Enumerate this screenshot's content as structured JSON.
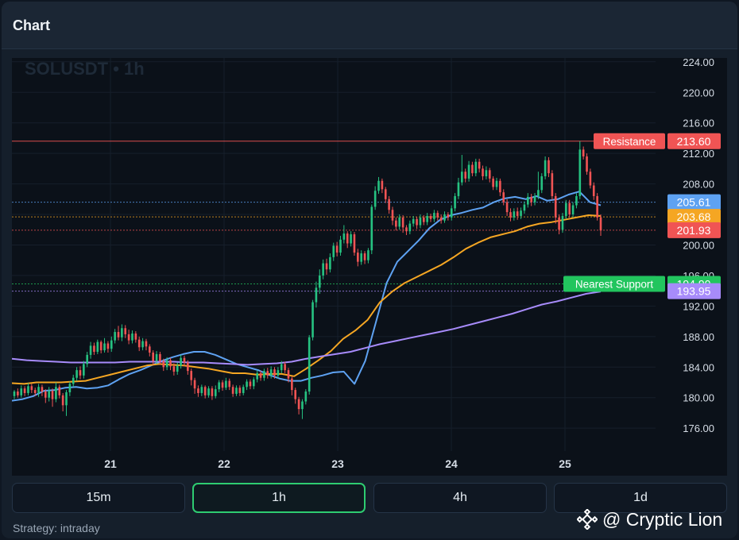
{
  "panel": {
    "title": "Chart"
  },
  "chart": {
    "symbol_label": "SOLUSDT • 1h",
    "y_ticks": [
      "224.00",
      "220.00",
      "216.00",
      "212.00",
      "208.00",
      "204.00",
      "200.00",
      "196.00",
      "192.00",
      "188.00",
      "184.00",
      "180.00",
      "176.00"
    ],
    "x_ticks": [
      "21",
      "22",
      "23",
      "24",
      "25"
    ]
  },
  "chart_data": {
    "type": "line",
    "symbol": "SOLUSDT",
    "interval": "1h",
    "ylim": [
      173,
      224.5
    ],
    "x_ticks": [
      "21",
      "22",
      "23",
      "24",
      "25"
    ],
    "series": [
      {
        "values": [
          179.6,
          179.8,
          180.2,
          180.9,
          181.0,
          181.3,
          181.4,
          181.2,
          181.3,
          181.6,
          182.4,
          183.1,
          183.6,
          184.2,
          184.8,
          185.3,
          185.7,
          186.0,
          186.0,
          185.6,
          185.0,
          184.4,
          184.0,
          183.6,
          183.0,
          182.5,
          182.2,
          182.2,
          182.6,
          182.9,
          183.3,
          183.4,
          181.8,
          184.8,
          189.9,
          195.0,
          197.8,
          199.2,
          200.6,
          202.2,
          203.3,
          203.9,
          204.2,
          204.6,
          204.9,
          205.6,
          206.1,
          206.3,
          206.0,
          206.4,
          205.8,
          206.0,
          206.6,
          207.0,
          205.6,
          205.2
        ],
        "color": "#5ea2f2"
      },
      {
        "values": [
          181.9,
          181.8,
          182.0,
          182.0,
          182.0,
          182.1,
          182.2,
          182.6,
          183.0,
          183.4,
          183.8,
          184.2,
          184.4,
          184.3,
          184.2,
          184.0,
          183.8,
          183.5,
          183.2,
          183.2,
          183.0,
          183.1,
          183.1,
          182.8,
          183.8,
          184.9,
          186.1,
          187.7,
          188.8,
          190.2,
          192.5,
          193.9,
          195.0,
          195.8,
          196.6,
          197.4,
          198.4,
          199.5,
          200.3,
          201.0,
          201.4,
          201.8,
          202.4,
          202.8,
          203.0,
          203.3,
          203.6,
          203.9,
          203.8
        ],
        "color": "#f5a623"
      },
      {
        "values": [
          185.1,
          184.9,
          184.8,
          184.7,
          184.6,
          184.6,
          184.6,
          184.6,
          184.7,
          184.7,
          184.7,
          184.7,
          184.6,
          184.6,
          184.5,
          184.4,
          184.3,
          184.4,
          184.5,
          184.7,
          185.1,
          185.4,
          185.7,
          186.0,
          186.5,
          187.0,
          187.4,
          187.8,
          188.2,
          188.6,
          189.0,
          189.5,
          190.0,
          190.5,
          191.0,
          191.6,
          192.2,
          192.6,
          193.1,
          193.6,
          193.9
        ],
        "color": "#a78bfa"
      }
    ],
    "levels": [
      {
        "label": "Resistance",
        "value": "213.60",
        "color": "#f05454"
      },
      {
        "label": "",
        "value": "205.61",
        "color": "#5ea2f2"
      },
      {
        "label": "",
        "value": "203.68",
        "color": "#f5a623"
      },
      {
        "label": "",
        "value": "201.93",
        "color": "#f05454"
      },
      {
        "label": "Nearest Support",
        "value": "194.90",
        "color": "#22c55e"
      },
      {
        "label": "",
        "value": "193.95",
        "color": "#a78bfa"
      }
    ],
    "candles": [
      [
        180.2,
        180.8,
        179.8,
        181.0
      ],
      [
        180.8,
        180.3,
        180.0,
        181.2
      ],
      [
        180.3,
        181.2,
        180.0,
        181.6
      ],
      [
        181.2,
        180.6,
        180.2,
        181.5
      ],
      [
        180.6,
        181.5,
        180.3,
        181.9
      ],
      [
        181.5,
        181.0,
        180.6,
        181.8
      ],
      [
        181.0,
        180.6,
        180.2,
        181.3
      ],
      [
        180.6,
        181.4,
        180.1,
        181.8
      ],
      [
        181.4,
        180.8,
        180.2,
        181.7
      ],
      [
        180.8,
        180.0,
        179.3,
        181.1
      ],
      [
        180.0,
        180.9,
        179.5,
        181.4
      ],
      [
        180.9,
        179.8,
        178.8,
        181.2
      ],
      [
        179.8,
        181.4,
        179.4,
        182.0
      ],
      [
        181.4,
        180.3,
        179.9,
        181.7
      ],
      [
        180.3,
        179.0,
        178.2,
        180.6
      ],
      [
        179.0,
        180.7,
        177.6,
        181.0
      ],
      [
        180.7,
        181.8,
        180.2,
        182.1
      ],
      [
        181.8,
        182.6,
        181.4,
        183.0
      ],
      [
        182.6,
        183.6,
        182.2,
        184.0
      ],
      [
        183.6,
        182.9,
        182.4,
        184.1
      ],
      [
        182.9,
        184.4,
        182.5,
        184.8
      ],
      [
        184.4,
        185.6,
        184.0,
        186.0
      ],
      [
        185.6,
        186.8,
        185.1,
        187.3
      ],
      [
        186.8,
        186.0,
        185.6,
        187.2
      ],
      [
        186.0,
        187.3,
        185.7,
        187.6
      ],
      [
        187.3,
        186.2,
        185.8,
        187.5
      ],
      [
        186.2,
        187.1,
        185.9,
        187.8
      ],
      [
        187.1,
        186.4,
        185.9,
        187.4
      ],
      [
        186.4,
        187.5,
        186.0,
        188.0
      ],
      [
        187.5,
        188.6,
        187.1,
        189.0
      ],
      [
        188.6,
        187.9,
        187.5,
        189.4
      ],
      [
        187.9,
        189.1,
        187.4,
        189.6
      ],
      [
        189.1,
        188.3,
        187.8,
        189.5
      ],
      [
        188.3,
        187.5,
        187.0,
        188.9
      ],
      [
        187.5,
        188.4,
        187.1,
        188.8
      ],
      [
        188.4,
        187.6,
        187.2,
        188.7
      ],
      [
        187.6,
        186.6,
        186.1,
        188.0
      ],
      [
        186.6,
        187.4,
        186.2,
        187.8
      ],
      [
        187.4,
        186.7,
        186.2,
        187.7
      ],
      [
        186.7,
        185.9,
        185.4,
        187.0
      ],
      [
        185.9,
        184.8,
        184.3,
        186.2
      ],
      [
        184.8,
        185.7,
        184.4,
        186.1
      ],
      [
        185.7,
        184.8,
        184.3,
        186.0
      ],
      [
        184.8,
        184.0,
        183.5,
        185.1
      ],
      [
        184.0,
        184.9,
        183.6,
        185.3
      ],
      [
        184.9,
        184.1,
        183.6,
        185.2
      ],
      [
        184.1,
        183.4,
        182.9,
        184.5
      ],
      [
        183.4,
        184.2,
        183.0,
        184.6
      ],
      [
        184.2,
        185.2,
        183.8,
        185.6
      ],
      [
        185.2,
        184.6,
        184.1,
        185.5
      ],
      [
        184.6,
        183.5,
        183.0,
        184.9
      ],
      [
        183.5,
        182.3,
        181.6,
        183.8
      ],
      [
        182.3,
        181.2,
        180.5,
        182.6
      ],
      [
        181.2,
        180.6,
        180.1,
        181.6
      ],
      [
        180.6,
        181.4,
        180.2,
        181.7
      ],
      [
        181.4,
        180.3,
        179.9,
        181.6
      ],
      [
        180.3,
        181.2,
        180.0,
        181.5
      ],
      [
        181.2,
        180.2,
        179.7,
        181.5
      ],
      [
        180.2,
        181.1,
        179.9,
        181.6
      ],
      [
        181.1,
        182.0,
        180.7,
        182.3
      ],
      [
        182.0,
        181.3,
        180.9,
        182.3
      ],
      [
        181.3,
        182.2,
        181.0,
        182.6
      ],
      [
        182.2,
        181.4,
        181.0,
        182.5
      ],
      [
        181.4,
        180.5,
        180.1,
        181.7
      ],
      [
        180.5,
        181.3,
        180.2,
        181.6
      ],
      [
        181.3,
        180.6,
        180.2,
        181.6
      ],
      [
        180.6,
        181.4,
        180.3,
        181.7
      ],
      [
        181.4,
        182.1,
        181.0,
        182.4
      ],
      [
        182.1,
        181.5,
        181.1,
        182.4
      ],
      [
        181.5,
        182.4,
        181.1,
        182.7
      ],
      [
        182.4,
        183.2,
        182.0,
        183.6
      ],
      [
        183.2,
        182.6,
        182.2,
        183.5
      ],
      [
        182.6,
        183.5,
        182.2,
        183.8
      ],
      [
        183.5,
        182.9,
        182.5,
        183.9
      ],
      [
        182.9,
        183.7,
        182.5,
        184.1
      ],
      [
        183.7,
        182.9,
        182.5,
        184.0
      ],
      [
        182.9,
        183.6,
        182.5,
        184.0
      ],
      [
        183.6,
        184.4,
        183.2,
        184.8
      ],
      [
        184.4,
        183.6,
        183.2,
        184.7
      ],
      [
        183.6,
        182.5,
        182.0,
        183.9
      ],
      [
        182.5,
        181.0,
        180.3,
        182.8
      ],
      [
        181.0,
        179.8,
        179.2,
        181.3
      ],
      [
        179.8,
        178.5,
        177.8,
        180.1
      ],
      [
        178.5,
        179.5,
        177.2,
        179.8
      ],
      [
        179.5,
        180.8,
        179.1,
        181.1
      ],
      [
        180.8,
        187.9,
        180.4,
        188.2
      ],
      [
        187.9,
        192.5,
        187.5,
        192.8
      ],
      [
        192.5,
        194.4,
        191.8,
        195.2
      ],
      [
        194.4,
        196.0,
        193.6,
        196.8
      ],
      [
        196.0,
        197.6,
        195.5,
        198.1
      ],
      [
        197.6,
        196.8,
        196.1,
        198.2
      ],
      [
        196.8,
        198.4,
        196.4,
        198.9
      ],
      [
        198.4,
        199.9,
        197.9,
        200.3
      ],
      [
        199.9,
        199.0,
        198.5,
        200.4
      ],
      [
        199.0,
        200.7,
        198.6,
        201.2
      ],
      [
        200.7,
        201.5,
        200.2,
        202.6
      ],
      [
        201.5,
        200.2,
        199.6,
        201.8
      ],
      [
        200.2,
        201.4,
        199.8,
        201.8
      ],
      [
        201.4,
        199.0,
        198.6,
        201.7
      ],
      [
        199.0,
        197.8,
        197.2,
        199.5
      ],
      [
        197.8,
        198.9,
        197.4,
        199.3
      ],
      [
        198.9,
        198.0,
        197.5,
        199.2
      ],
      [
        198.0,
        199.3,
        197.6,
        199.6
      ],
      [
        199.3,
        205.0,
        198.8,
        205.3
      ],
      [
        205.0,
        207.1,
        204.6,
        207.7
      ],
      [
        207.1,
        208.4,
        206.7,
        208.9
      ],
      [
        208.4,
        207.3,
        206.8,
        208.7
      ],
      [
        207.3,
        206.0,
        205.5,
        207.6
      ],
      [
        206.0,
        204.6,
        204.1,
        206.4
      ],
      [
        204.6,
        203.2,
        202.6,
        205.0
      ],
      [
        203.2,
        202.4,
        201.9,
        203.6
      ],
      [
        202.4,
        203.6,
        202.0,
        204.0
      ],
      [
        203.6,
        202.3,
        201.6,
        203.9
      ],
      [
        202.3,
        201.8,
        201.3,
        202.6
      ],
      [
        201.8,
        202.8,
        201.4,
        203.2
      ],
      [
        202.8,
        203.4,
        202.4,
        203.8
      ],
      [
        203.4,
        202.6,
        202.1,
        203.7
      ],
      [
        202.6,
        203.6,
        202.2,
        204.0
      ],
      [
        203.6,
        203.0,
        202.6,
        203.9
      ],
      [
        203.0,
        203.8,
        202.6,
        204.2
      ],
      [
        203.8,
        203.4,
        203.0,
        204.1
      ],
      [
        203.4,
        204.2,
        203.0,
        204.6
      ],
      [
        204.2,
        203.6,
        203.2,
        204.5
      ],
      [
        203.6,
        203.2,
        202.8,
        204.0
      ],
      [
        203.2,
        204.0,
        202.9,
        204.4
      ],
      [
        204.0,
        203.6,
        203.2,
        204.3
      ],
      [
        203.6,
        204.8,
        203.2,
        205.2
      ],
      [
        204.8,
        206.4,
        204.4,
        206.8
      ],
      [
        206.4,
        208.2,
        206.0,
        208.8
      ],
      [
        208.2,
        209.6,
        207.8,
        211.8
      ],
      [
        209.6,
        208.7,
        208.2,
        210.0
      ],
      [
        208.7,
        210.5,
        208.3,
        211.0
      ],
      [
        210.5,
        209.4,
        209.0,
        210.9
      ],
      [
        209.4,
        210.9,
        209.0,
        211.3
      ],
      [
        210.9,
        210.0,
        209.5,
        211.3
      ],
      [
        210.0,
        209.0,
        208.5,
        210.4
      ],
      [
        209.0,
        209.8,
        208.6,
        210.3
      ],
      [
        209.8,
        208.7,
        208.2,
        210.1
      ],
      [
        208.7,
        207.6,
        207.2,
        209.0
      ],
      [
        207.6,
        208.4,
        207.2,
        208.8
      ],
      [
        208.4,
        206.9,
        206.4,
        208.7
      ],
      [
        206.9,
        205.6,
        205.2,
        207.3
      ],
      [
        205.6,
        204.3,
        203.8,
        206.0
      ],
      [
        204.3,
        203.6,
        203.1,
        204.8
      ],
      [
        203.6,
        204.4,
        203.2,
        204.8
      ],
      [
        204.4,
        203.8,
        203.3,
        204.9
      ],
      [
        203.8,
        204.5,
        203.4,
        204.9
      ],
      [
        204.5,
        205.3,
        204.1,
        205.7
      ],
      [
        205.3,
        206.3,
        204.9,
        206.8
      ],
      [
        206.3,
        205.6,
        205.1,
        206.7
      ],
      [
        205.6,
        206.4,
        205.2,
        206.8
      ],
      [
        206.4,
        207.2,
        206.0,
        209.6
      ],
      [
        207.2,
        209.0,
        206.8,
        209.4
      ],
      [
        209.0,
        211.1,
        208.6,
        211.6
      ],
      [
        211.1,
        209.4,
        208.9,
        211.5
      ],
      [
        209.4,
        206.4,
        205.9,
        209.8
      ],
      [
        206.4,
        203.6,
        202.8,
        206.8
      ],
      [
        203.6,
        202.0,
        201.4,
        204.0
      ],
      [
        202.0,
        203.8,
        201.6,
        204.2
      ],
      [
        203.8,
        205.5,
        203.4,
        205.9
      ],
      [
        205.5,
        204.0,
        203.6,
        205.9
      ],
      [
        204.0,
        205.2,
        203.6,
        205.6
      ],
      [
        205.2,
        206.4,
        204.8,
        206.8
      ],
      [
        206.4,
        212.5,
        206.0,
        213.6
      ],
      [
        212.5,
        211.6,
        211.2,
        212.9
      ],
      [
        211.6,
        209.6,
        209.2,
        212.0
      ],
      [
        209.6,
        207.8,
        207.4,
        210.0
      ],
      [
        207.8,
        206.4,
        205.9,
        208.2
      ],
      [
        206.4,
        203.6,
        203.2,
        206.8
      ],
      [
        203.6,
        201.9,
        201.2,
        204.0
      ]
    ]
  },
  "timeframes": [
    {
      "label": "15m",
      "active": false
    },
    {
      "label": "1h",
      "active": true
    },
    {
      "label": "4h",
      "active": false
    },
    {
      "label": "1d",
      "active": false
    }
  ],
  "footer": {
    "strategy": "Strategy: intraday"
  },
  "watermark": {
    "text": "@ Cryptic Lion",
    "icon": "binance-diamond-icon"
  }
}
